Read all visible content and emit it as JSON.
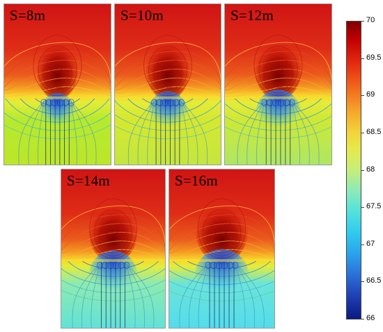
{
  "panels": [
    {
      "id": "p1",
      "label": "S=8m",
      "gap": 8
    },
    {
      "id": "p2",
      "label": "S=10m",
      "gap": 10
    },
    {
      "id": "p3",
      "label": "S=12m",
      "gap": 12
    },
    {
      "id": "p4",
      "label": "S=14m",
      "gap": 14
    },
    {
      "id": "p5",
      "label": "S=16m",
      "gap": 16
    }
  ],
  "colorbar": {
    "min": 66,
    "max": 70,
    "ticks": [
      "70",
      "69.5",
      "69",
      "68.5",
      "68",
      "67.5",
      "67",
      "66.5",
      "66"
    ],
    "colors": [
      "#800000",
      "#e42a10",
      "#f6a42a",
      "#e6ea4c",
      "#8ceab8",
      "#30cbee",
      "#2a72da",
      "#0a1a82"
    ]
  }
}
